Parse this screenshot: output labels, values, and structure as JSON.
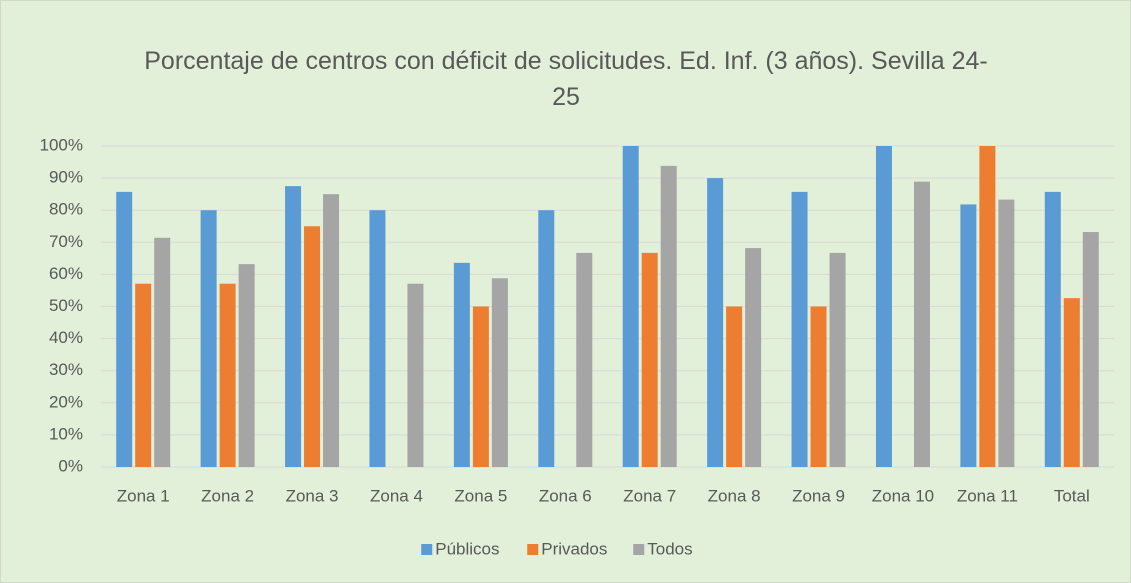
{
  "chart_data": {
    "type": "bar",
    "title": "Porcentaje de centros con déficit de solicitudes. Ed. Inf. (3 años). Sevilla 24-25",
    "categories": [
      "Zona 1",
      "Zona 2",
      "Zona 3",
      "Zona 4",
      "Zona 5",
      "Zona 6",
      "Zona 7",
      "Zona 8",
      "Zona 9",
      "Zona 10",
      "Zona 11",
      "Total"
    ],
    "series": [
      {
        "name": "Públicos",
        "color": "#5b9bd5",
        "values": [
          85.7,
          80,
          87.5,
          80,
          63.6,
          80,
          100,
          90,
          85.7,
          100,
          81.8,
          85.7
        ]
      },
      {
        "name": "Privados",
        "color": "#ed7d31",
        "values": [
          57.1,
          57.1,
          75,
          null,
          50,
          null,
          66.7,
          50,
          50,
          null,
          100,
          52.6
        ]
      },
      {
        "name": "Todos",
        "color": "#a5a5a5",
        "values": [
          71.4,
          63.2,
          85,
          57.1,
          58.8,
          66.7,
          93.8,
          68.2,
          66.7,
          88.9,
          83.3,
          73.2
        ]
      }
    ],
    "ylim": [
      0,
      100
    ],
    "yticks": [
      {
        "value": 0,
        "label": "0%"
      },
      {
        "value": 10,
        "label": "10%"
      },
      {
        "value": 20,
        "label": "20%"
      },
      {
        "value": 30,
        "label": "30%"
      },
      {
        "value": 40,
        "label": "40%"
      },
      {
        "value": 50,
        "label": "50%"
      },
      {
        "value": 60,
        "label": "60%"
      },
      {
        "value": 70,
        "label": "70%"
      },
      {
        "value": 80,
        "label": "80%"
      },
      {
        "value": 90,
        "label": "90%"
      },
      {
        "value": 100,
        "label": "100%"
      }
    ],
    "grid": true,
    "legend": "bottom"
  }
}
